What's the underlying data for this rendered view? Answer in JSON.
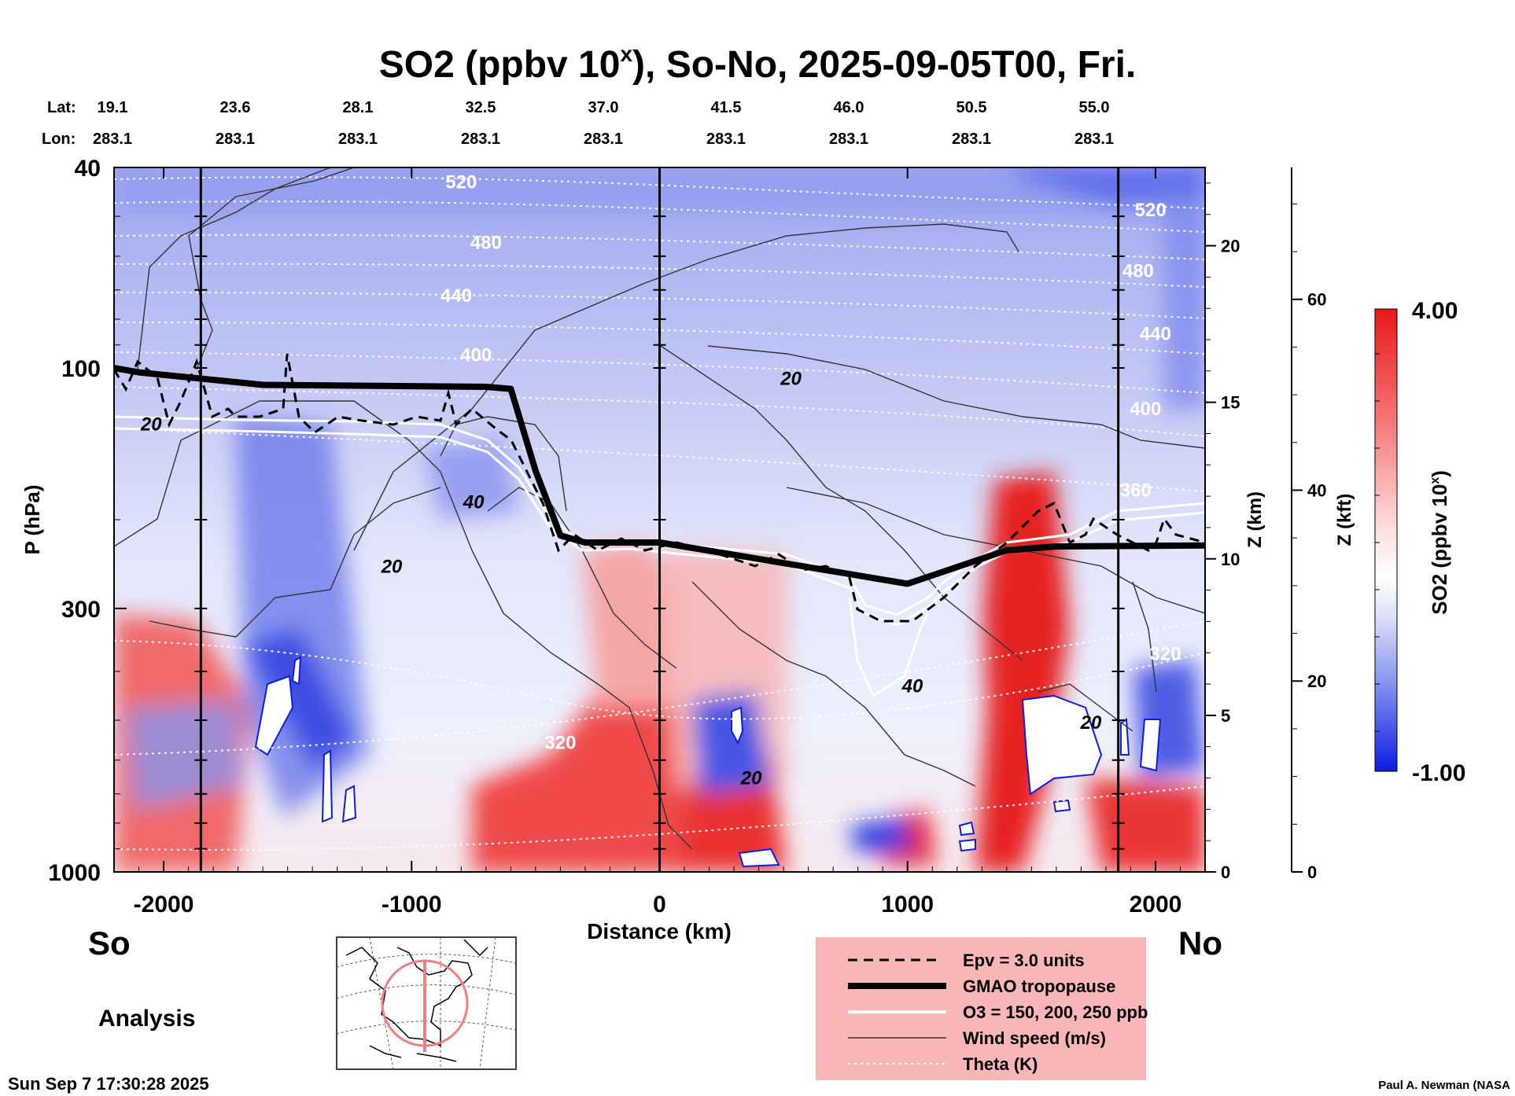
{
  "chart_data": {
    "type": "heatmap",
    "title": "SO2 (ppbv 10",
    "title_superscript": "x",
    "title_suffix": "), So-No, 2025-09-05T00, Fri.",
    "lat_label": "Lat:",
    "lon_label": "Lon:",
    "lat_ticks": [
      "19.1",
      "23.6",
      "28.1",
      "32.5",
      "37.0",
      "41.5",
      "46.0",
      "50.5",
      "55.0"
    ],
    "lon_ticks": [
      "283.1",
      "283.1",
      "283.1",
      "283.1",
      "283.1",
      "283.1",
      "283.1",
      "283.1",
      "283.1"
    ],
    "xlabel": "Distance (km)",
    "xlim": [
      -2200,
      2200
    ],
    "x_ticks": [
      -2000,
      -1000,
      0,
      1000,
      2000
    ],
    "x_tick_labels": [
      "-2000",
      "-1000",
      "0",
      "1000",
      "2000"
    ],
    "ylabel": "P (hPa)",
    "ylim": [
      1000,
      40
    ],
    "y_ticks": [
      1000,
      300,
      100,
      40
    ],
    "y_tick_labels": [
      "1000",
      "300",
      "100",
      "40"
    ],
    "z_km_label": "Z (km)",
    "z_km_ticks": [
      0,
      5,
      10,
      15,
      20
    ],
    "z_km_tick_labels": [
      "0",
      "5",
      "10",
      "15",
      "20"
    ],
    "z_kft_label": "Z (kft)",
    "z_kft_ticks": [
      0,
      20,
      40,
      60
    ],
    "z_kft_tick_labels": [
      "0",
      "20",
      "40",
      "60"
    ],
    "reference_lines_km": [
      -1850,
      0,
      1850
    ],
    "tropopause_hpa": [
      [
        -2200,
        100
      ],
      [
        -2100,
        102
      ],
      [
        -1600,
        108
      ],
      [
        -700,
        109
      ],
      [
        -600,
        110
      ],
      [
        -500,
        160
      ],
      [
        -400,
        215
      ],
      [
        -300,
        222
      ],
      [
        0,
        222
      ],
      [
        800,
        258
      ],
      [
        1000,
        268
      ],
      [
        1400,
        230
      ],
      [
        1600,
        226
      ],
      [
        2200,
        225
      ]
    ],
    "wind_contour_labels": [
      {
        "text": "20",
        "x": -2050,
        "p": 133
      },
      {
        "text": "40",
        "x": -750,
        "p": 190
      },
      {
        "text": "20",
        "x": -1080,
        "p": 255
      },
      {
        "text": "20",
        "x": 530,
        "p": 108
      },
      {
        "text": "40",
        "x": 1020,
        "p": 440
      },
      {
        "text": "20",
        "x": 370,
        "p": 670
      },
      {
        "text": "20",
        "x": 1740,
        "p": 520
      }
    ],
    "theta_contour_labels": [
      {
        "text": "520",
        "x": -800,
        "p": 44
      },
      {
        "text": "480",
        "x": -700,
        "p": 58
      },
      {
        "text": "440",
        "x": -820,
        "p": 74
      },
      {
        "text": "400",
        "x": -740,
        "p": 97
      },
      {
        "text": "320",
        "x": -400,
        "p": 570
      },
      {
        "text": "520",
        "x": 1980,
        "p": 50
      },
      {
        "text": "480",
        "x": 1930,
        "p": 66
      },
      {
        "text": "440",
        "x": 2000,
        "p": 88
      },
      {
        "text": "400",
        "x": 1960,
        "p": 124
      },
      {
        "text": "360",
        "x": 1920,
        "p": 180
      },
      {
        "text": "320",
        "x": 2040,
        "p": 380
      }
    ],
    "colorbar": {
      "label": "SO2 (ppbv 10",
      "label_superscript": "x",
      "label_suffix": ")",
      "min": -1.0,
      "max": 4.0,
      "min_label": "-1.00",
      "max_label": "4.00",
      "colors": [
        "#0b1de0",
        "#dfe3fa",
        "#ffffff",
        "#fde0e0",
        "#e81818"
      ]
    },
    "legend": [
      {
        "label": "Epv = 3.0 units",
        "style": "dashed"
      },
      {
        "label": "GMAO tropopause",
        "style": "thick"
      },
      {
        "label": "O3 = 150, 200, 250 ppb",
        "style": "white"
      },
      {
        "label": "Wind speed (m/s)",
        "style": "thin"
      },
      {
        "label": "Theta (K)",
        "style": "dotted"
      }
    ],
    "south_label": "So",
    "north_label": "No",
    "mode_label": "Analysis"
  },
  "footer": {
    "timestamp": "Sun Sep  7 17:30:28 2025",
    "credit": "Paul A. Newman (NASA"
  },
  "colors": {
    "legend_bg": "#f9b6b6",
    "low": "#0b1de0",
    "high": "#e81818"
  }
}
